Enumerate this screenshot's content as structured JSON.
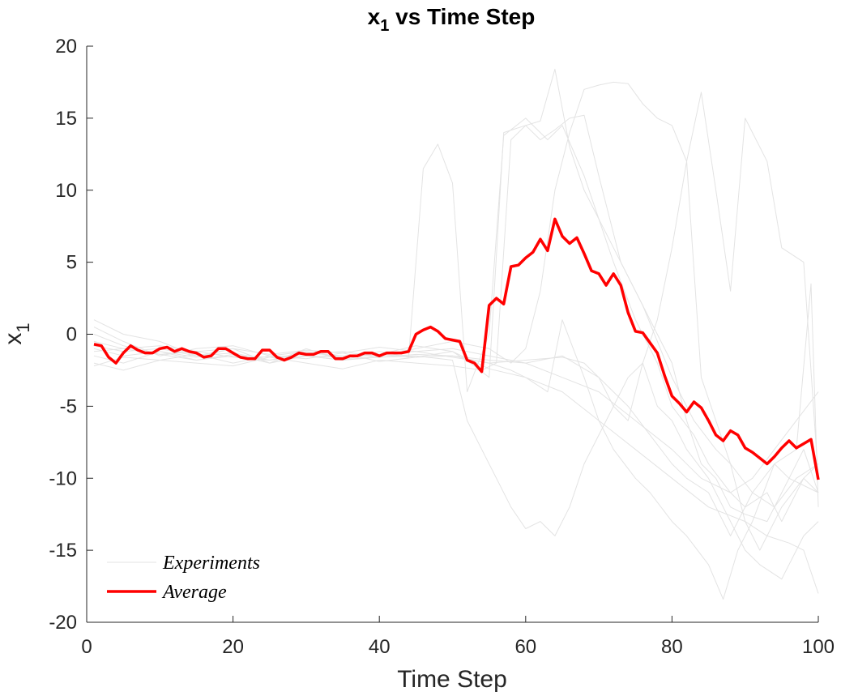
{
  "chart_data": {
    "type": "line",
    "title": "x",
    "title_subscript": "1",
    "title_suffix": " vs Time Step",
    "xlabel": "Time Step",
    "ylabel": "x",
    "ylabel_subscript": "1",
    "xlim": [
      0,
      100
    ],
    "ylim": [
      -20,
      20
    ],
    "xticks": [
      0,
      20,
      40,
      60,
      80,
      100
    ],
    "yticks": [
      -20,
      -15,
      -10,
      -5,
      0,
      5,
      10,
      15,
      20
    ],
    "grid": false,
    "legend_position": "bottom-left",
    "colors": {
      "experiments": "#e3e3e3",
      "average": "#ff0000",
      "axis": "#262626"
    },
    "series": [
      {
        "name": "Experiments",
        "role": "experiment",
        "x": [
          1,
          5,
          10,
          15,
          20,
          25,
          30,
          35,
          40,
          44,
          46,
          48,
          50,
          52,
          55,
          57,
          60,
          63,
          65,
          68,
          72,
          75,
          78,
          80,
          83,
          85,
          88,
          90,
          93,
          95,
          98,
          100
        ],
        "values": [
          -1,
          -1.5,
          -1.2,
          -1.6,
          -1,
          -2,
          -1.5,
          -1.8,
          -1.2,
          -1.6,
          11.5,
          13.2,
          10.5,
          -4,
          0,
          13.8,
          15,
          13.5,
          14.5,
          11,
          5,
          1,
          -2,
          -5,
          -7,
          -9,
          -11,
          -12,
          -11,
          -13,
          -10,
          -11
        ]
      },
      {
        "name": "",
        "role": "experiment",
        "x": [
          1,
          5,
          10,
          15,
          20,
          25,
          30,
          35,
          40,
          45,
          50,
          53,
          55,
          57,
          60,
          62,
          64,
          66,
          68,
          70,
          73,
          76,
          80,
          83,
          86,
          88,
          91,
          94,
          97,
          100
        ],
        "values": [
          0.5,
          -0.5,
          -1.5,
          -1,
          -0.8,
          -1.5,
          -1.2,
          -1.6,
          -1.4,
          -0.8,
          -1.2,
          -2.2,
          -3,
          14,
          14.5,
          13.5,
          14.2,
          15,
          15.2,
          11,
          5,
          2,
          -3,
          -6,
          -8,
          -9,
          -11,
          -12,
          -10,
          -9
        ]
      },
      {
        "name": "",
        "role": "experiment",
        "x": [
          1,
          5,
          10,
          15,
          20,
          25,
          30,
          35,
          40,
          45,
          50,
          54,
          56,
          58,
          60,
          62,
          64,
          66,
          68,
          70,
          72,
          75,
          78,
          80,
          82,
          84,
          86,
          88,
          90,
          93,
          96,
          100
        ],
        "values": [
          -2,
          -2.5,
          -1.8,
          -2,
          -2.2,
          -1.6,
          -2,
          -2.4,
          -1.8,
          -2,
          -2.2,
          -2.5,
          -2,
          13.5,
          14.5,
          14.8,
          18.4,
          13,
          10,
          8,
          6,
          3,
          0,
          -2,
          -6,
          -9,
          -10,
          -12,
          -12.5,
          -13,
          -10,
          -11
        ]
      },
      {
        "name": "",
        "role": "experiment",
        "x": [
          1,
          5,
          10,
          15,
          20,
          25,
          30,
          35,
          40,
          45,
          50,
          55,
          58,
          60,
          62,
          64,
          66,
          68,
          70,
          72,
          74,
          76,
          78,
          80,
          82,
          84,
          86,
          88,
          90,
          92,
          95,
          98,
          100
        ],
        "values": [
          1,
          0,
          -0.5,
          -1.5,
          -1,
          -2,
          -1,
          -1.8,
          -1.5,
          -1,
          -0.5,
          -1,
          -2,
          -1,
          3,
          10,
          14,
          17,
          17.3,
          17.5,
          17.4,
          16,
          15,
          14.5,
          12,
          -3,
          -6,
          -9,
          -13,
          -15,
          -12,
          -10,
          -9
        ]
      },
      {
        "name": "",
        "role": "experiment",
        "x": [
          1,
          5,
          10,
          15,
          20,
          25,
          30,
          35,
          40,
          45,
          50,
          52,
          54,
          56,
          58,
          60,
          62,
          64,
          66,
          68,
          70,
          72,
          74,
          76,
          78,
          80,
          82,
          85,
          88,
          90,
          92,
          95,
          98,
          100
        ],
        "values": [
          -1.2,
          -1,
          -1.4,
          -1.8,
          -1.5,
          -1.6,
          -1.4,
          -1.2,
          -1.6,
          -1.5,
          -1.8,
          -6,
          -8,
          -10,
          -12,
          -13.5,
          -13,
          -14,
          -12,
          -9,
          -7,
          -5,
          -3,
          -2,
          -5,
          -6,
          -8,
          -10,
          -13,
          -15,
          -16,
          -17,
          -14,
          -13
        ]
      },
      {
        "name": "",
        "role": "experiment",
        "x": [
          1,
          5,
          10,
          15,
          20,
          25,
          30,
          35,
          40,
          45,
          50,
          55,
          58,
          60,
          63,
          65,
          68,
          70,
          72,
          75,
          77,
          80,
          82,
          85,
          87,
          89,
          91,
          94,
          96,
          98,
          100
        ],
        "values": [
          -0.8,
          -1.2,
          -1,
          -1.5,
          -1.3,
          -1.8,
          -1.5,
          -1.6,
          -1.4,
          -1.2,
          -1.6,
          -2,
          -2.5,
          -3,
          -4,
          1,
          -3,
          -6,
          -8,
          -10,
          -11,
          -13,
          -14,
          -16,
          -18.4,
          -15,
          -13,
          -9,
          -10,
          -8,
          -11
        ]
      },
      {
        "name": "",
        "role": "experiment",
        "x": [
          1,
          5,
          10,
          15,
          20,
          25,
          30,
          35,
          40,
          45,
          50,
          55,
          60,
          65,
          68,
          70,
          72,
          74,
          76,
          78,
          80,
          82,
          84,
          86,
          88,
          90,
          93,
          95,
          98,
          100
        ],
        "values": [
          -1.5,
          -2,
          -1.2,
          -1.8,
          -1.4,
          -2,
          -1.5,
          -1.8,
          -1.6,
          -1.4,
          -1.5,
          -2,
          -1.8,
          -1.6,
          -2,
          -3,
          -5,
          -6,
          -2,
          1,
          6,
          12,
          16.8,
          10,
          3,
          15,
          12,
          6,
          5,
          -10
        ]
      },
      {
        "name": "",
        "role": "experiment",
        "x": [
          1,
          5,
          10,
          15,
          20,
          25,
          30,
          35,
          40,
          45,
          50,
          55,
          60,
          65,
          70,
          74,
          77,
          80,
          82,
          85,
          88,
          91,
          94,
          97,
          99,
          100
        ],
        "values": [
          0,
          -0.8,
          -1.4,
          -1.2,
          -1.6,
          -1.8,
          -1.3,
          -1.5,
          -1.4,
          -1.6,
          -1.5,
          -1.8,
          -2,
          -1.5,
          -3,
          -5,
          -7,
          -9,
          -10,
          -11,
          -14,
          -11,
          -9,
          -8,
          3.5,
          -12
        ]
      },
      {
        "name": "",
        "role": "experiment",
        "x": [
          1,
          5,
          10,
          15,
          20,
          25,
          30,
          35,
          40,
          45,
          50,
          55,
          60,
          65,
          70,
          75,
          80,
          85,
          90,
          93,
          96,
          98,
          100
        ],
        "values": [
          -2.2,
          -1.6,
          -1.8,
          -1.4,
          -2,
          -1.5,
          -1.7,
          -1.3,
          -1.9,
          -1.6,
          -1.2,
          -2.4,
          -3,
          -4,
          -6,
          -8,
          -10,
          -12,
          -13,
          -14,
          -14.5,
          -15,
          -18
        ]
      },
      {
        "name": "",
        "role": "experiment",
        "x": [
          1,
          5,
          10,
          15,
          20,
          25,
          30,
          35,
          40,
          45,
          50,
          55,
          60,
          65,
          70,
          75,
          80,
          84,
          88,
          91,
          94,
          97,
          100
        ],
        "values": [
          -0.5,
          -1,
          -0.8,
          -1.2,
          -1,
          -1.4,
          -1.1,
          -1.3,
          -0.9,
          -1.2,
          -1,
          -1.5,
          -2,
          -3,
          -4,
          -6,
          -8,
          -10,
          -11,
          -10,
          -8,
          -6,
          -4
        ]
      },
      {
        "name": "Average",
        "role": "average",
        "x": [
          1,
          2,
          3,
          4,
          5,
          6,
          7,
          8,
          9,
          10,
          11,
          12,
          13,
          14,
          15,
          16,
          17,
          18,
          19,
          20,
          21,
          22,
          23,
          24,
          25,
          26,
          27,
          28,
          29,
          30,
          31,
          32,
          33,
          34,
          35,
          36,
          37,
          38,
          39,
          40,
          41,
          42,
          43,
          44,
          45,
          46,
          47,
          48,
          49,
          50,
          51,
          52,
          53,
          54,
          55,
          56,
          57,
          58,
          59,
          60,
          61,
          62,
          63,
          64,
          65,
          66,
          67,
          68,
          69,
          70,
          71,
          72,
          73,
          74,
          75,
          76,
          77,
          78,
          79,
          80,
          81,
          82,
          83,
          84,
          85,
          86,
          87,
          88,
          89,
          90,
          91,
          92,
          93,
          94,
          95,
          96,
          97,
          98,
          99,
          100
        ],
        "values": [
          -0.7,
          -0.8,
          -1.6,
          -2,
          -1.3,
          -0.8,
          -1.1,
          -1.3,
          -1.3,
          -1,
          -0.9,
          -1.2,
          -1,
          -1.2,
          -1.3,
          -1.6,
          -1.5,
          -1,
          -1,
          -1.3,
          -1.6,
          -1.7,
          -1.7,
          -1.1,
          -1.1,
          -1.6,
          -1.8,
          -1.6,
          -1.3,
          -1.4,
          -1.4,
          -1.2,
          -1.2,
          -1.7,
          -1.7,
          -1.5,
          -1.5,
          -1.3,
          -1.3,
          -1.5,
          -1.3,
          -1.3,
          -1.3,
          -1.2,
          0,
          0.3,
          0.5,
          0.2,
          -0.3,
          -0.4,
          -0.5,
          -1.8,
          -2,
          -2.6,
          2,
          2.5,
          2.1,
          4.7,
          4.8,
          5.3,
          5.7,
          6.6,
          5.8,
          8,
          6.8,
          6.3,
          6.7,
          5.6,
          4.4,
          4.2,
          3.4,
          4.2,
          3.4,
          1.5,
          0.2,
          0.1,
          -0.6,
          -1.3,
          -2.9,
          -4.3,
          -4.8,
          -5.4,
          -4.7,
          -5.1,
          -6,
          -7,
          -7.4,
          -6.7,
          -7,
          -7.9,
          -8.2,
          -8.6,
          -9,
          -8.5,
          -7.9,
          -7.4,
          -7.9,
          -7.6,
          -7.3,
          -10.1
        ]
      }
    ]
  }
}
